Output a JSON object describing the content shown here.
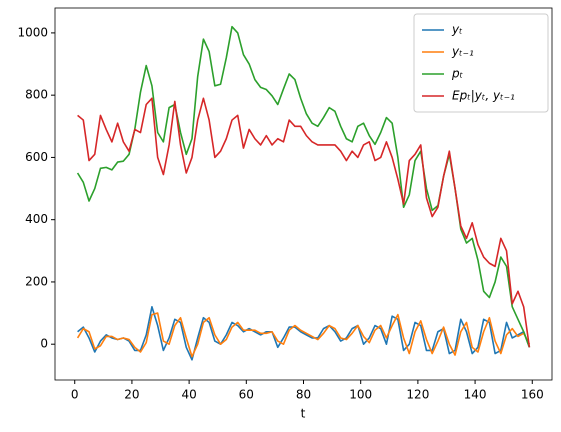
{
  "chart_data": {
    "type": "line",
    "xlabel": "t",
    "x": [
      1,
      3,
      5,
      7,
      9,
      11,
      13,
      15,
      17,
      19,
      21,
      23,
      25,
      27,
      29,
      31,
      33,
      35,
      37,
      39,
      41,
      43,
      45,
      47,
      49,
      51,
      53,
      55,
      57,
      59,
      61,
      63,
      65,
      67,
      69,
      71,
      73,
      75,
      77,
      79,
      81,
      83,
      85,
      87,
      89,
      91,
      93,
      95,
      97,
      99,
      101,
      103,
      105,
      107,
      109,
      111,
      113,
      115,
      117,
      119,
      121,
      123,
      125,
      127,
      129,
      131,
      133,
      135,
      137,
      139,
      141,
      143,
      145,
      147,
      149,
      151,
      153,
      155,
      157,
      159
    ],
    "series": [
      {
        "name": "yₜ",
        "color": "#1f77b4",
        "values": [
          40,
          55,
          20,
          -25,
          10,
          30,
          20,
          15,
          20,
          10,
          -20,
          -20,
          30,
          120,
          60,
          -20,
          20,
          80,
          70,
          -10,
          -50,
          20,
          85,
          70,
          10,
          0,
          30,
          70,
          60,
          40,
          50,
          40,
          30,
          40,
          40,
          -10,
          20,
          55,
          55,
          40,
          30,
          20,
          20,
          50,
          60,
          40,
          10,
          20,
          50,
          60,
          0,
          20,
          60,
          50,
          0,
          90,
          80,
          -20,
          0,
          70,
          60,
          -20,
          -20,
          40,
          50,
          -30,
          -20,
          80,
          40,
          -30,
          -10,
          80,
          70,
          -30,
          -20,
          70,
          20,
          30,
          40,
          -10
        ]
      },
      {
        "name": "yₜ₋₁",
        "color": "#ff7f0e",
        "values": [
          20,
          50,
          40,
          -15,
          -5,
          25,
          25,
          15,
          20,
          15,
          -10,
          -25,
          5,
          95,
          100,
          10,
          0,
          60,
          85,
          20,
          -40,
          0,
          70,
          85,
          30,
          0,
          15,
          55,
          70,
          45,
          45,
          45,
          35,
          35,
          40,
          10,
          0,
          45,
          60,
          45,
          35,
          25,
          15,
          35,
          60,
          50,
          20,
          15,
          35,
          60,
          25,
          5,
          45,
          60,
          20,
          60,
          95,
          20,
          -30,
          40,
          75,
          15,
          -30,
          10,
          55,
          0,
          -35,
          40,
          70,
          -10,
          -25,
          40,
          85,
          10,
          -30,
          30,
          50,
          25,
          35,
          0
        ]
      },
      {
        "name": "pₜ",
        "color": "#2ca02c",
        "values": [
          550,
          520,
          460,
          500,
          565,
          568,
          560,
          585,
          588,
          610,
          690,
          810,
          895,
          830,
          680,
          650,
          760,
          770,
          680,
          610,
          660,
          860,
          980,
          940,
          830,
          835,
          920,
          1020,
          1000,
          930,
          900,
          850,
          825,
          818,
          798,
          770,
          820,
          868,
          850,
          790,
          740,
          710,
          700,
          728,
          760,
          748,
          700,
          660,
          650,
          700,
          710,
          670,
          642,
          680,
          728,
          710,
          600,
          440,
          480,
          590,
          620,
          500,
          430,
          445,
          540,
          610,
          500,
          370,
          325,
          340,
          270,
          170,
          150,
          200,
          280,
          250,
          120,
          80,
          40,
          -10
        ]
      },
      {
        "name": "Epₜ|yₜ, yₜ₋₁",
        "color": "#d62728",
        "values": [
          735,
          720,
          590,
          610,
          735,
          690,
          650,
          710,
          650,
          620,
          690,
          680,
          770,
          790,
          600,
          545,
          640,
          780,
          640,
          550,
          600,
          720,
          790,
          720,
          600,
          620,
          660,
          720,
          735,
          630,
          690,
          660,
          640,
          670,
          640,
          660,
          650,
          720,
          700,
          700,
          670,
          650,
          640,
          640,
          640,
          640,
          620,
          590,
          620,
          600,
          640,
          650,
          590,
          600,
          650,
          600,
          530,
          450,
          590,
          610,
          640,
          470,
          410,
          440,
          540,
          620,
          500,
          380,
          340,
          390,
          320,
          280,
          260,
          250,
          340,
          300,
          130,
          170,
          120,
          -10
        ]
      }
    ],
    "xlim": [
      -6.9,
      166.9
    ],
    "xticks": [
      0,
      20,
      40,
      60,
      80,
      100,
      120,
      140,
      160
    ],
    "ylim": [
      -115,
      1080
    ],
    "yticks": [
      0,
      200,
      400,
      600,
      800,
      1000
    ],
    "legend": "upper right"
  }
}
